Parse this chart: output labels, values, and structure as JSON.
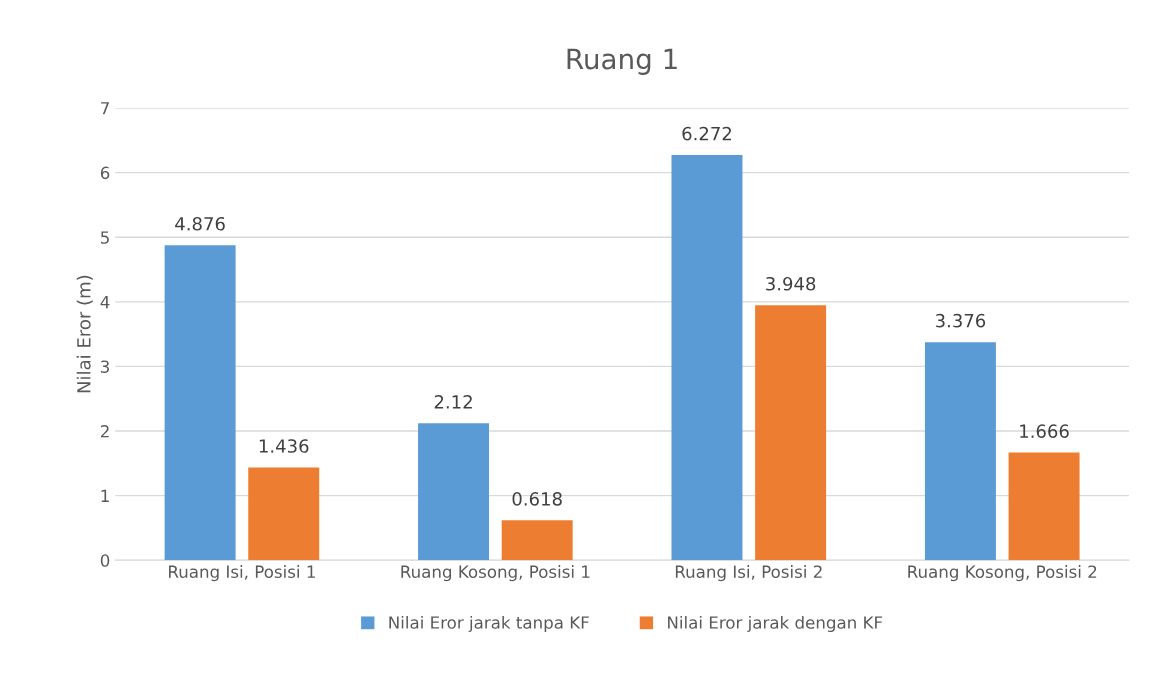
{
  "chart_data": {
    "type": "bar",
    "title": "Ruang 1",
    "ylabel": "Nilai Eror (m)",
    "categories": [
      "Ruang Isi, Posisi 1",
      "Ruang Kosong, Posisi 1",
      "Ruang Isi, Posisi 2",
      "Ruang Kosong, Posisi 2"
    ],
    "series": [
      {
        "name": "Nilai Eror jarak tanpa KF",
        "color": "#5b9bd5",
        "values": [
          4.876,
          2.12,
          6.272,
          3.376
        ]
      },
      {
        "name": "Nilai Eror jarak dengan KF",
        "color": "#ed7d31",
        "values": [
          1.436,
          0.618,
          3.948,
          1.666
        ]
      }
    ],
    "ylim": [
      0,
      7
    ],
    "yticks": [
      0,
      1,
      2,
      3,
      4,
      5,
      6,
      7
    ],
    "grid": "y",
    "legend": "bottom",
    "data_labels": true
  }
}
